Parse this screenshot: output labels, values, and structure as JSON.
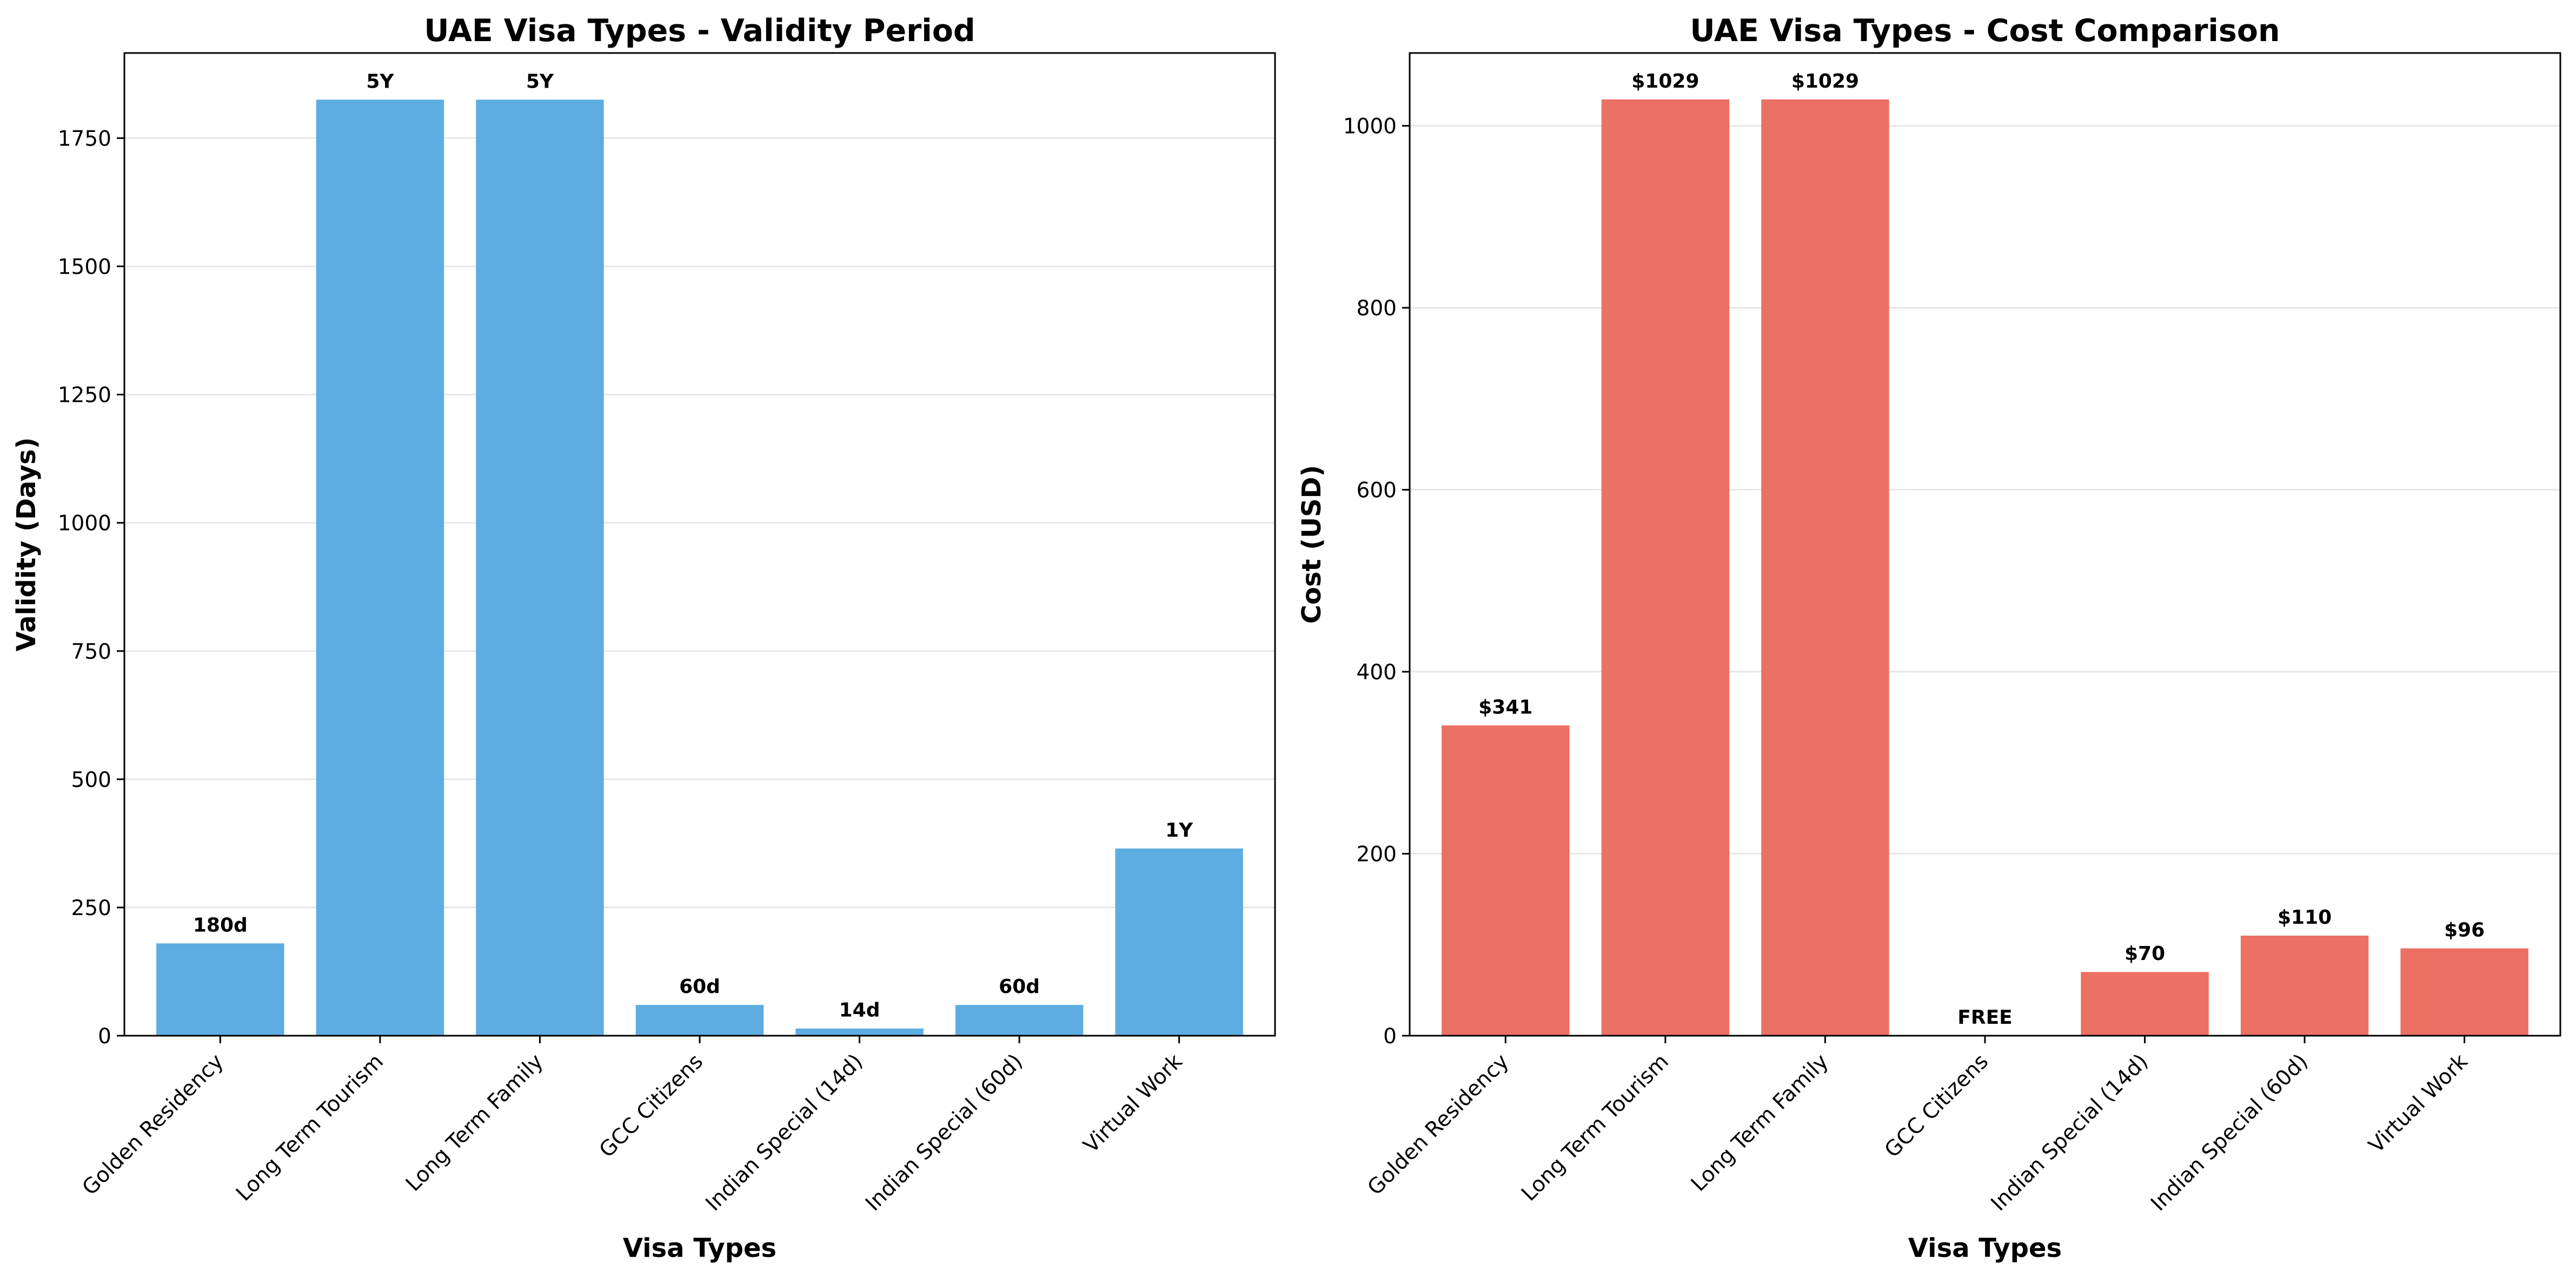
{
  "chart_data": [
    {
      "type": "bar",
      "title": "UAE Visa Types - Validity Period",
      "xlabel": "Visa Types",
      "ylabel": "Validity (Days)",
      "categories": [
        "Golden Residency",
        "Long Term Tourism",
        "Long Term Family",
        "GCC Citizens",
        "Indian Special (14d)",
        "Indian Special (60d)",
        "Virtual Work"
      ],
      "values": [
        180,
        1825,
        1825,
        60,
        14,
        60,
        365
      ],
      "data_labels": [
        "180d",
        "5Y",
        "5Y",
        "60d",
        "14d",
        "60d",
        "1Y"
      ],
      "yticks": [
        0,
        250,
        500,
        750,
        1000,
        1250,
        1500,
        1750
      ],
      "ylim": [
        0,
        1916
      ],
      "grid": "y",
      "color": "#5DADE2"
    },
    {
      "type": "bar",
      "title": "UAE Visa Types - Cost Comparison",
      "xlabel": "Visa Types",
      "ylabel": "Cost (USD)",
      "categories": [
        "Golden Residency",
        "Long Term Tourism",
        "Long Term Family",
        "GCC Citizens",
        "Indian Special (14d)",
        "Indian Special (60d)",
        "Virtual Work"
      ],
      "values": [
        341,
        1029,
        1029,
        0,
        70,
        110,
        96
      ],
      "data_labels": [
        "$341",
        "$1029",
        "$1029",
        "FREE",
        "$70",
        "$110",
        "$96"
      ],
      "yticks": [
        0,
        200,
        400,
        600,
        800,
        1000
      ],
      "ylim": [
        0,
        1080
      ],
      "grid": "y",
      "color": "#EC7063"
    }
  ]
}
